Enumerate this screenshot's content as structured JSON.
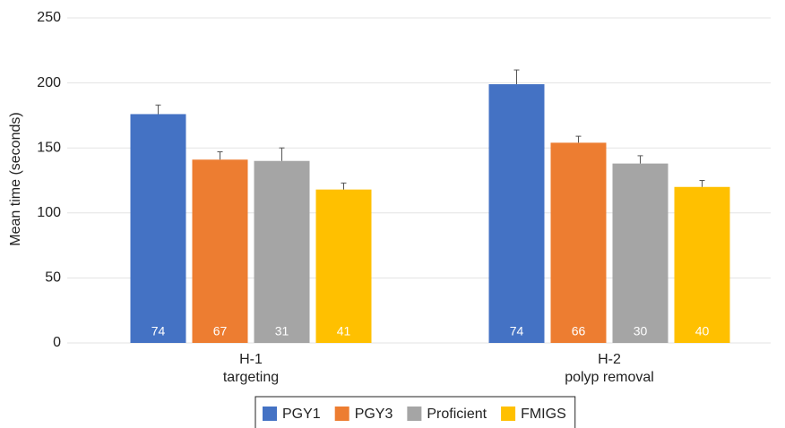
{
  "chart_data": {
    "type": "bar",
    "ylabel": "Mean time (seconds)",
    "categories": [
      "H-1",
      "H-2"
    ],
    "subcategories": [
      "targeting",
      "polyp removal"
    ],
    "series": [
      {
        "name": "PGY1",
        "color": "#4472c4",
        "values": [
          176,
          199
        ],
        "errors": [
          7,
          11
        ],
        "counts": [
          74,
          74
        ]
      },
      {
        "name": "PGY3",
        "color": "#ed7d31",
        "values": [
          141,
          154
        ],
        "errors": [
          6,
          5
        ],
        "counts": [
          67,
          66
        ]
      },
      {
        "name": "Proficient",
        "color": "#a5a5a5",
        "values": [
          140,
          138
        ],
        "errors": [
          10,
          6
        ],
        "counts": [
          31,
          30
        ]
      },
      {
        "name": "FMIGS",
        "color": "#ffc000",
        "values": [
          118,
          120
        ],
        "errors": [
          5,
          5
        ],
        "counts": [
          41,
          40
        ]
      }
    ],
    "ylim": [
      0,
      250
    ],
    "yticks": [
      0,
      50,
      100,
      150,
      200,
      250
    ],
    "grid": true,
    "legend": "bottom"
  }
}
